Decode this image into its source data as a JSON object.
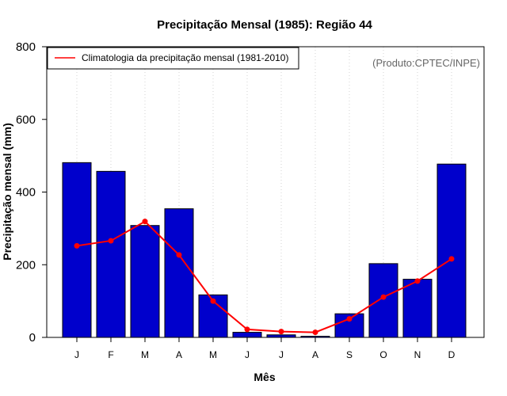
{
  "chart_data": {
    "type": "bar",
    "title": "Precipitação Mensal (1985): Região 44",
    "xlabel": "Mês",
    "ylabel": "Precipitação mensal (mm)",
    "ylim": [
      0,
      800
    ],
    "yticks": [
      0,
      200,
      400,
      600,
      800
    ],
    "categories": [
      "J",
      "F",
      "M",
      "A",
      "M",
      "J",
      "J",
      "A",
      "S",
      "O",
      "N",
      "D"
    ],
    "series": [
      {
        "name": "Precipitação mensal (1985)",
        "type": "bar",
        "color": "#0000CC",
        "values": [
          481,
          457,
          308,
          354,
          117,
          14,
          7,
          3,
          65,
          203,
          160,
          477
        ]
      },
      {
        "name": "Climatologia da precipitação mensal (1981-2010)",
        "type": "line",
        "color": "#FF0000",
        "values": [
          252,
          266,
          319,
          227,
          100,
          22,
          16,
          14,
          51,
          111,
          155,
          216
        ]
      }
    ],
    "legend": {
      "position": "top-left",
      "entries": [
        "Climatologia da precipitação mensal (1981-2010)"
      ]
    },
    "annotation": "(Produto:CPTEC/INPE)",
    "grid": "vertical-dotted"
  }
}
